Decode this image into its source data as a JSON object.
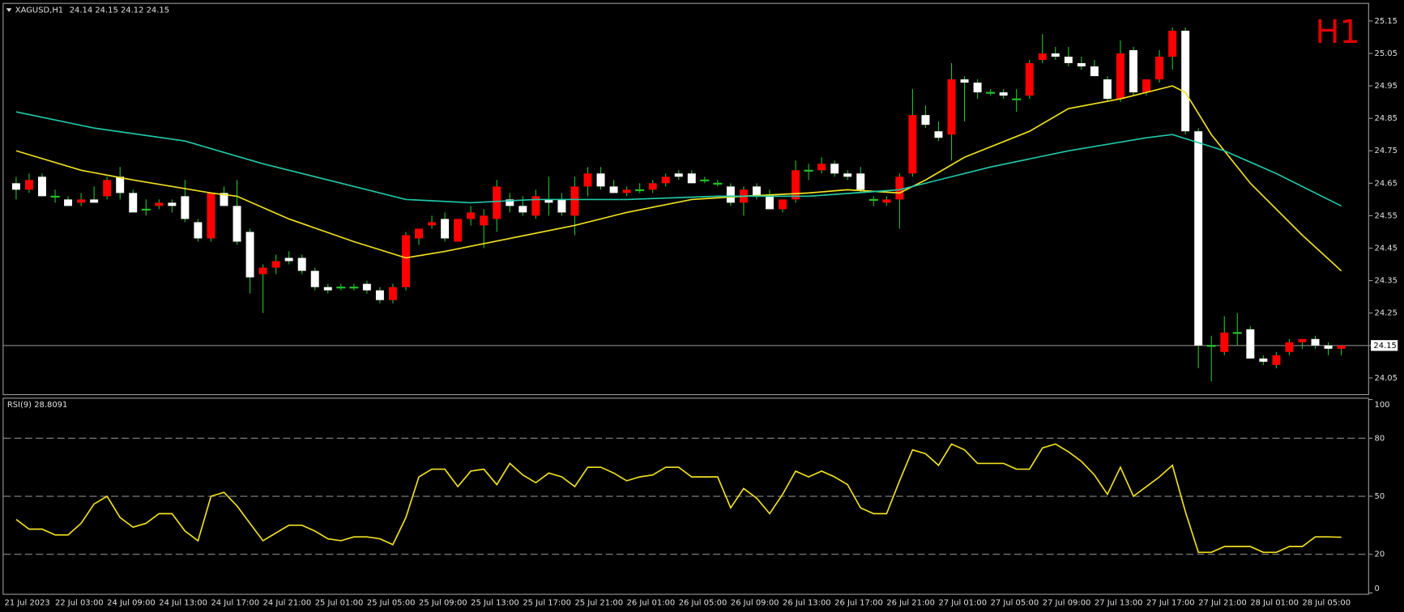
{
  "chart_data": [
    {
      "type": "candlestick",
      "title": "XAGUSD,H1",
      "timeframe": "H1",
      "categories": [
        "21 Jul 2023",
        null,
        null,
        "22 Jul 03:00",
        null,
        null,
        null,
        "24 Jul 09:00",
        null,
        null,
        null,
        "24 Jul 13:00",
        null,
        null,
        null,
        "24 Jul 17:00",
        null,
        null,
        null,
        "24 Jul 21:00",
        null,
        null,
        null,
        "25 Jul 01:00",
        null,
        null,
        null,
        "25 Jul 05:00",
        null,
        null,
        null,
        "25 Jul 09:00",
        null,
        null,
        null,
        "25 Jul 13:00",
        null,
        null,
        null,
        "25 Jul 17:00",
        null,
        null,
        null,
        "25 Jul 21:00",
        null,
        null,
        null,
        "26 Jul 01:00",
        null,
        null,
        null,
        "26 Jul 05:00",
        null,
        null,
        null,
        "26 Jul 09:00",
        null,
        null,
        null,
        "26 Jul 13:00",
        null,
        null,
        null,
        "26 Jul 17:00",
        null,
        null,
        null,
        "26 Jul 21:00",
        null,
        null,
        null,
        "27 Jul 01:00",
        null,
        null,
        null,
        "27 Jul 05:00",
        null,
        null,
        null,
        "27 Jul 09:00",
        null,
        null,
        null,
        "27 Jul 13:00",
        null,
        null,
        null,
        "27 Jul 17:00",
        null,
        null,
        null,
        "27 Jul 21:00",
        null,
        null,
        null,
        "28 Jul 01:00",
        null,
        null,
        null,
        "28 Jul 05:00",
        null,
        null,
        null
      ],
      "open": [
        24.65,
        24.63,
        24.67,
        24.61,
        24.6,
        24.59,
        24.6,
        24.61,
        24.67,
        24.62,
        24.57,
        24.58,
        24.59,
        24.61,
        24.53,
        24.48,
        24.62,
        24.58,
        24.5,
        24.37,
        24.39,
        24.42,
        24.42,
        24.38,
        24.33,
        24.33,
        24.33,
        24.34,
        24.32,
        24.29,
        24.33,
        24.48,
        24.52,
        24.54,
        24.47,
        24.54,
        24.52,
        24.54,
        24.6,
        24.58,
        24.55,
        24.6,
        24.6,
        24.55,
        24.64,
        24.68,
        24.64,
        24.62,
        24.63,
        24.63,
        24.65,
        24.68,
        24.68,
        24.66,
        24.65,
        24.64,
        24.59,
        24.64,
        24.61,
        24.57,
        24.6,
        24.69,
        24.69,
        24.71,
        24.68,
        24.68,
        24.6,
        24.59,
        24.6,
        24.68,
        24.86,
        24.81,
        24.8,
        24.97,
        24.96,
        24.93,
        24.93,
        24.91,
        24.92,
        25.03,
        25.05,
        25.04,
        25.02,
        25.01,
        24.97,
        24.91,
        25.06,
        24.93,
        24.97,
        25.04,
        25.12,
        24.81,
        24.15,
        24.13,
        24.19,
        24.2,
        24.11,
        24.09,
        24.13,
        24.16,
        24.17,
        24.15,
        24.14
      ],
      "high": [
        24.67,
        24.68,
        24.68,
        24.63,
        24.61,
        24.62,
        24.64,
        24.67,
        24.7,
        24.63,
        24.6,
        24.6,
        24.6,
        24.66,
        24.54,
        24.62,
        24.64,
        24.66,
        24.51,
        24.4,
        24.43,
        24.44,
        24.43,
        24.39,
        24.34,
        24.34,
        24.34,
        24.35,
        24.33,
        24.34,
        24.5,
        24.51,
        24.55,
        24.56,
        24.54,
        24.58,
        24.57,
        24.66,
        24.62,
        24.61,
        24.63,
        24.67,
        24.62,
        24.67,
        24.7,
        24.7,
        24.66,
        24.64,
        24.65,
        24.66,
        24.68,
        24.69,
        24.69,
        24.67,
        24.66,
        24.65,
        24.64,
        24.65,
        24.63,
        24.6,
        24.72,
        24.71,
        24.73,
        24.72,
        24.69,
        24.7,
        24.61,
        24.61,
        24.68,
        24.94,
        24.89,
        24.84,
        25.02,
        24.98,
        24.97,
        24.94,
        24.94,
        24.94,
        25.03,
        25.11,
        25.07,
        25.07,
        25.04,
        25.03,
        24.98,
        25.09,
        25.07,
        24.97,
        25.06,
        25.13,
        25.13,
        24.82,
        24.18,
        24.24,
        24.25,
        24.21,
        24.12,
        24.13,
        24.17,
        24.17,
        24.18,
        24.16,
        24.15
      ],
      "low": [
        24.6,
        24.62,
        24.61,
        24.59,
        24.58,
        24.58,
        24.59,
        24.6,
        24.6,
        24.56,
        24.55,
        24.57,
        24.56,
        24.53,
        24.47,
        24.47,
        24.58,
        24.46,
        24.31,
        24.25,
        24.37,
        24.4,
        24.37,
        24.32,
        24.31,
        24.32,
        24.32,
        24.31,
        24.28,
        24.28,
        24.32,
        24.46,
        24.51,
        24.47,
        24.47,
        24.52,
        24.45,
        24.5,
        24.56,
        24.55,
        24.54,
        24.55,
        24.55,
        24.49,
        24.61,
        24.63,
        24.62,
        24.61,
        24.62,
        24.62,
        24.64,
        24.66,
        24.65,
        24.65,
        24.64,
        24.58,
        24.55,
        24.6,
        24.57,
        24.56,
        24.59,
        24.66,
        24.68,
        24.67,
        24.66,
        24.62,
        24.58,
        24.58,
        24.51,
        24.67,
        24.82,
        24.78,
        24.72,
        24.84,
        24.91,
        24.92,
        24.91,
        24.87,
        24.91,
        25.02,
        25.03,
        25.01,
        25.0,
        24.98,
        24.9,
        24.9,
        24.92,
        24.92,
        24.96,
        25.0,
        24.8,
        24.08,
        24.04,
        24.12,
        24.15,
        24.11,
        24.09,
        24.08,
        24.12,
        24.14,
        24.14,
        24.12,
        24.12
      ],
      "close": [
        24.63,
        24.66,
        24.61,
        24.61,
        24.58,
        24.6,
        24.59,
        24.66,
        24.62,
        24.56,
        24.57,
        24.59,
        24.58,
        24.54,
        24.48,
        24.62,
        24.58,
        24.47,
        24.36,
        24.39,
        24.41,
        24.41,
        24.38,
        24.33,
        24.32,
        24.33,
        24.33,
        24.32,
        24.29,
        24.33,
        24.49,
        24.51,
        24.53,
        24.48,
        24.54,
        24.56,
        24.55,
        24.64,
        24.58,
        24.56,
        24.61,
        24.59,
        24.56,
        24.64,
        24.68,
        24.64,
        24.62,
        24.63,
        24.63,
        24.65,
        24.67,
        24.67,
        24.65,
        24.66,
        24.65,
        24.59,
        24.63,
        24.61,
        24.57,
        24.6,
        24.69,
        24.69,
        24.71,
        24.68,
        24.67,
        24.63,
        24.6,
        24.6,
        24.67,
        24.86,
        24.83,
        24.79,
        24.97,
        24.96,
        24.93,
        24.93,
        24.92,
        24.91,
        25.02,
        25.05,
        25.04,
        25.02,
        25.01,
        24.98,
        24.91,
        25.05,
        24.93,
        24.97,
        25.04,
        25.12,
        24.81,
        24.15,
        24.15,
        24.19,
        24.19,
        24.11,
        24.1,
        24.12,
        24.16,
        24.17,
        24.15,
        24.14,
        24.15
      ],
      "up_color": "#ff0000",
      "down_color": "#ffffff",
      "wick_color": "#22c02a",
      "overlays": [
        {
          "color": "#f0e020",
          "x": [
            0,
            5,
            9,
            15,
            17,
            21,
            26,
            30,
            33,
            38,
            43,
            47,
            52,
            56,
            61,
            64,
            68,
            70,
            73,
            78,
            81,
            85,
            89,
            90,
            92,
            95,
            99,
            102
          ],
          "values": [
            24.75,
            24.69,
            24.66,
            24.62,
            24.61,
            24.54,
            24.47,
            24.42,
            24.44,
            24.48,
            24.52,
            24.56,
            24.6,
            24.61,
            24.62,
            24.63,
            24.62,
            24.66,
            24.73,
            24.81,
            24.88,
            24.91,
            24.95,
            24.93,
            24.8,
            24.65,
            24.49,
            24.38
          ]
        },
        {
          "color": "#20c8a8",
          "x": [
            0,
            6,
            13,
            19,
            26,
            30,
            35,
            40,
            47,
            54,
            61,
            68,
            75,
            81,
            87,
            89,
            93,
            97,
            102
          ],
          "values": [
            24.87,
            24.82,
            24.78,
            24.71,
            24.64,
            24.6,
            24.59,
            24.6,
            24.6,
            24.61,
            24.61,
            24.63,
            24.7,
            24.75,
            24.79,
            24.8,
            24.75,
            24.68,
            24.58
          ]
        }
      ],
      "bid": 24.15,
      "ylim": [
        24.0,
        25.2
      ],
      "yticks": [
        25.15,
        25.05,
        24.95,
        24.85,
        24.75,
        24.65,
        24.55,
        24.45,
        24.35,
        24.25,
        24.15,
        24.05
      ]
    },
    {
      "type": "line",
      "title": "RSI(9) 28.8091",
      "color": "#f0e020",
      "values": [
        38,
        33,
        33,
        30,
        30,
        36,
        46,
        50,
        39,
        34,
        36,
        41,
        41,
        32,
        27,
        50,
        52,
        45,
        36,
        27,
        31,
        35,
        35,
        32,
        28,
        27,
        29,
        29,
        28,
        25,
        39,
        60,
        64,
        64,
        55,
        63,
        64,
        56,
        67,
        61,
        57,
        62,
        60,
        55,
        65,
        65,
        62,
        58,
        60,
        61,
        65,
        65,
        60,
        60,
        60,
        44,
        54,
        49,
        41,
        51,
        63,
        60,
        63,
        60,
        56,
        44,
        41,
        41,
        58,
        74,
        72,
        66,
        77,
        74,
        67,
        67,
        67,
        64,
        64,
        75,
        77,
        73,
        68,
        61,
        51,
        65,
        50,
        55,
        60,
        66,
        42,
        21,
        21,
        24,
        24,
        24,
        21,
        21,
        24,
        24,
        29,
        29,
        28.8091
      ],
      "ylim": [
        0,
        100
      ],
      "yticks": [
        100,
        80,
        50,
        20,
        0
      ],
      "levels": [
        80,
        50,
        20
      ]
    }
  ]
}
